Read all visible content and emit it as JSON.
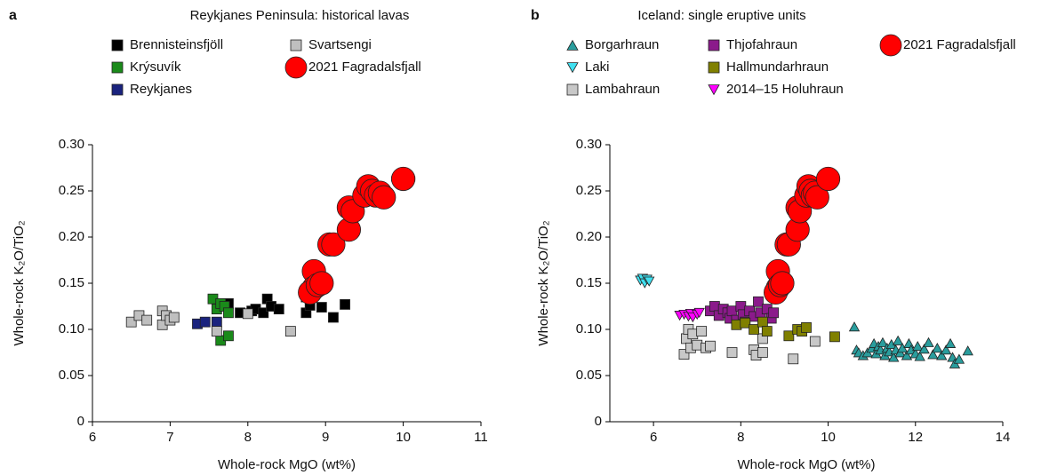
{
  "chart_data": [
    {
      "type": "scatter",
      "panel_label": "a",
      "title": "Reykjanes Peninsula: historical lavas",
      "x_label": "Whole-rock MgO (wt%)",
      "y_label": "Whole-rock K₂O/TiO₂",
      "xlim": [
        6,
        11
      ],
      "xticks": [
        6,
        7,
        8,
        9,
        10,
        11
      ],
      "ylim": [
        0,
        0.3
      ],
      "yticks": [
        0,
        0.05,
        {
          "value": 0.1,
          "label": "0.10"
        },
        0.15,
        {
          "value": 0.2,
          "label": "0.20"
        },
        0.25,
        {
          "value": 0.3,
          "label": "0.30"
        }
      ],
      "series": [
        {
          "name": "Brennisteinsfjöll",
          "color": "#000000",
          "marker": "square",
          "x": [
            7.75,
            7.9,
            8.05,
            8.1,
            8.2,
            8.25,
            8.3,
            8.4,
            8.75,
            8.75,
            8.8,
            8.95,
            9.1,
            9.25
          ],
          "values": [
            0.128,
            0.118,
            0.12,
            0.122,
            0.118,
            0.133,
            0.125,
            0.122,
            0.135,
            0.118,
            0.126,
            0.124,
            0.113,
            0.127
          ]
        },
        {
          "name": "Krýsuvík",
          "color": "#1a8a1a",
          "marker": "square",
          "x": [
            7.55,
            7.6,
            7.65,
            7.7,
            7.75,
            7.65,
            7.75
          ],
          "values": [
            0.133,
            0.122,
            0.128,
            0.125,
            0.118,
            0.088,
            0.093
          ]
        },
        {
          "name": "Reykjanes",
          "color": "#1a237e",
          "marker": "square",
          "x": [
            7.35,
            7.45,
            7.6
          ],
          "values": [
            0.106,
            0.108,
            0.108
          ]
        },
        {
          "name": "Svartsengi",
          "color": "#bfbfbf",
          "marker": "square",
          "x": [
            6.5,
            6.6,
            6.7,
            6.9,
            6.9,
            6.95,
            7.0,
            7.05,
            7.6,
            8.0,
            8.55
          ],
          "values": [
            0.108,
            0.115,
            0.11,
            0.105,
            0.12,
            0.115,
            0.11,
            0.113,
            0.098,
            0.117,
            0.098
          ]
        },
        {
          "name": "2021 Fagradalsfjall",
          "color": "#ff0000",
          "marker": "circle",
          "x": [
            8.85,
            8.85,
            8.8,
            8.9,
            8.95,
            9.05,
            9.1,
            9.3,
            9.3,
            9.35,
            9.5,
            9.55,
            9.6,
            9.65,
            9.7,
            9.75,
            10.0
          ],
          "values": [
            0.163,
            0.145,
            0.14,
            0.148,
            0.15,
            0.192,
            0.192,
            0.208,
            0.232,
            0.228,
            0.245,
            0.255,
            0.25,
            0.245,
            0.248,
            0.243,
            0.263
          ],
          "xerr": [
            0.1,
            0.1,
            0.1,
            0.1,
            0.1,
            0.1,
            0.1,
            0.1,
            0.1,
            0.1,
            0.1,
            0.1,
            0.1,
            0.1,
            0.15,
            0.1,
            0.15
          ],
          "yerr": [
            0.01,
            0.01,
            0.01,
            0.01,
            0.01,
            0.01,
            0.01,
            0.01,
            0.01,
            0.01,
            0.01,
            0.01,
            0.01,
            0.01,
            0.01,
            0.01,
            0.01
          ]
        }
      ]
    },
    {
      "type": "scatter",
      "panel_label": "b",
      "title": "Iceland: single eruptive units",
      "x_label": "Whole-rock MgO (wt%)",
      "y_label": "Whole-rock K₂O/TiO₂",
      "xlim": [
        5,
        14
      ],
      "xticks": [
        6,
        8,
        10,
        12,
        14
      ],
      "ylim": [
        0,
        0.3
      ],
      "yticks": [
        0,
        0.05,
        {
          "value": 0.1,
          "label": "0.10"
        },
        0.15,
        {
          "value": 0.2,
          "label": "0.20"
        },
        0.25,
        {
          "value": 0.3,
          "label": "0.30"
        }
      ],
      "series": [
        {
          "name": "Borgarhraun",
          "color": "#2a9d9d",
          "marker": "triangle-up",
          "x": [
            10.6,
            10.65,
            10.7,
            10.8,
            10.9,
            11.0,
            11.05,
            11.1,
            11.15,
            11.2,
            11.25,
            11.3,
            11.35,
            11.4,
            11.45,
            11.5,
            11.55,
            11.6,
            11.65,
            11.7,
            11.8,
            11.85,
            11.9,
            12.0,
            12.05,
            12.1,
            12.2,
            12.3,
            12.4,
            12.5,
            12.6,
            12.7,
            12.8,
            12.85,
            12.9,
            13.0,
            13.2
          ],
          "values": [
            0.103,
            0.078,
            0.075,
            0.072,
            0.075,
            0.08,
            0.085,
            0.074,
            0.082,
            0.078,
            0.086,
            0.072,
            0.08,
            0.076,
            0.084,
            0.07,
            0.078,
            0.088,
            0.075,
            0.08,
            0.072,
            0.085,
            0.078,
            0.074,
            0.082,
            0.071,
            0.079,
            0.086,
            0.073,
            0.08,
            0.072,
            0.078,
            0.085,
            0.07,
            0.063,
            0.068,
            0.077
          ]
        },
        {
          "name": "Laki",
          "color": "#40e0f0",
          "marker": "triangle-down",
          "x": [
            5.7,
            5.75,
            5.8,
            5.85,
            5.9
          ],
          "values": [
            0.153,
            0.155,
            0.15,
            0.154,
            0.152
          ]
        },
        {
          "name": "Lambahraun",
          "color": "#c8c8c8",
          "marker": "square",
          "x": [
            6.7,
            6.75,
            6.8,
            6.85,
            6.9,
            7.0,
            7.1,
            7.2,
            7.3,
            7.8,
            8.3,
            8.35,
            8.5,
            8.5,
            9.2,
            9.7
          ],
          "values": [
            0.073,
            0.09,
            0.1,
            0.08,
            0.095,
            0.083,
            0.098,
            0.08,
            0.082,
            0.075,
            0.078,
            0.072,
            0.075,
            0.09,
            0.068,
            0.087
          ]
        },
        {
          "name": "Thjofahraun",
          "color": "#8b1a8b",
          "marker": "square",
          "x": [
            7.3,
            7.4,
            7.5,
            7.6,
            7.7,
            7.75,
            7.8,
            7.9,
            8.0,
            8.05,
            8.1,
            8.2,
            8.3,
            8.4,
            8.45,
            8.6,
            8.7,
            8.75
          ],
          "values": [
            0.12,
            0.125,
            0.115,
            0.122,
            0.118,
            0.112,
            0.12,
            0.11,
            0.125,
            0.116,
            0.108,
            0.12,
            0.114,
            0.13,
            0.118,
            0.122,
            0.112,
            0.118
          ]
        },
        {
          "name": "Hallmundarhraun",
          "color": "#808000",
          "marker": "square",
          "x": [
            7.9,
            8.1,
            8.3,
            8.5,
            8.6,
            9.1,
            9.3,
            9.4,
            9.5,
            10.15
          ],
          "values": [
            0.105,
            0.107,
            0.1,
            0.108,
            0.098,
            0.093,
            0.1,
            0.098,
            0.102,
            0.092
          ]
        },
        {
          "name": "2014–15 Holuhraun",
          "color": "#ff00ff",
          "marker": "triangle-down",
          "x": [
            6.6,
            6.7,
            6.8,
            6.85,
            6.9,
            7.0,
            7.05
          ],
          "values": [
            0.115,
            0.116,
            0.114,
            0.117,
            0.113,
            0.116,
            0.118
          ]
        },
        {
          "name": "2021 Fagradalsfjall",
          "color": "#ff0000",
          "marker": "circle",
          "x": [
            8.85,
            8.85,
            8.8,
            8.9,
            8.95,
            9.05,
            9.1,
            9.3,
            9.3,
            9.35,
            9.5,
            9.55,
            9.6,
            9.65,
            9.7,
            9.75,
            10.0
          ],
          "values": [
            0.163,
            0.145,
            0.14,
            0.148,
            0.15,
            0.192,
            0.192,
            0.208,
            0.232,
            0.228,
            0.245,
            0.255,
            0.25,
            0.245,
            0.248,
            0.243,
            0.263
          ],
          "xerr": [
            0.1,
            0.1,
            0.1,
            0.1,
            0.1,
            0.1,
            0.1,
            0.1,
            0.1,
            0.1,
            0.1,
            0.1,
            0.1,
            0.1,
            0.15,
            0.1,
            0.15
          ],
          "yerr": [
            0.01,
            0.01,
            0.01,
            0.01,
            0.01,
            0.01,
            0.01,
            0.01,
            0.01,
            0.01,
            0.01,
            0.01,
            0.01,
            0.01,
            0.01,
            0.01,
            0.01
          ]
        }
      ]
    }
  ]
}
